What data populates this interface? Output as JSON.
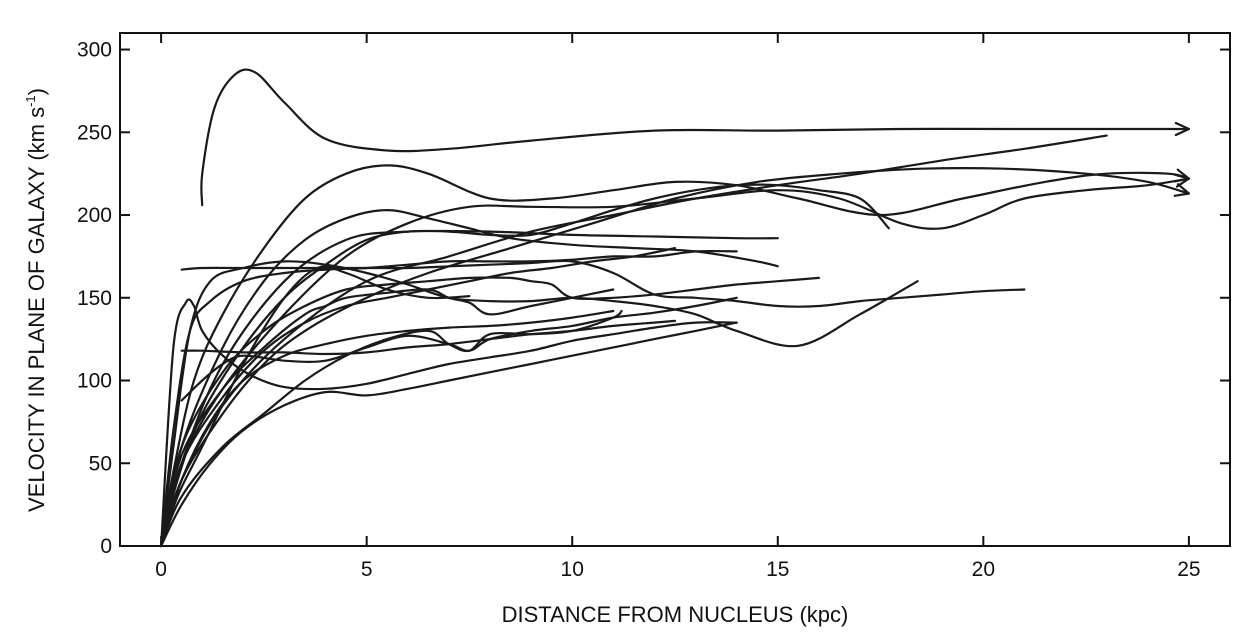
{
  "chart_data": {
    "type": "line",
    "title": "",
    "xlabel": "DISTANCE FROM NUCLEUS (kpc)",
    "ylabel_main": "VELOCITY IN PLANE OF GALAXY (km s",
    "ylabel_sup": "-1",
    "ylabel_end": ")",
    "xlim": [
      -1,
      26
    ],
    "ylim": [
      0,
      310
    ],
    "xticks": [
      0,
      5,
      10,
      15,
      20,
      25
    ],
    "yticks": [
      0,
      50,
      100,
      150,
      200,
      250,
      300
    ],
    "grid": false,
    "legend": "none",
    "line_color": "#1a1a1a",
    "series": [
      {
        "arrow": true,
        "x": [
          1.0,
          1.0,
          1.3,
          1.8,
          2.3,
          3.0,
          4.0,
          5.5,
          7.0,
          9.0,
          12.0,
          15.0,
          18.0,
          21.0,
          25.0
        ],
        "y": [
          206,
          225,
          265,
          285,
          286,
          268,
          246,
          239,
          240,
          245,
          251,
          251,
          252,
          252,
          252
        ]
      },
      {
        "arrow": true,
        "x": [
          0.0,
          0.3,
          0.8,
          1.5,
          2.5,
          3.5,
          4.5,
          5.5,
          6.5,
          8.0,
          9.5,
          11.0,
          12.5,
          14.0,
          15.5,
          17.5,
          19.5,
          21.5,
          23.0,
          24.5,
          25.0
        ],
        "y": [
          0,
          45,
          100,
          140,
          180,
          210,
          225,
          230,
          225,
          210,
          210,
          215,
          220,
          218,
          210,
          200,
          210,
          220,
          225,
          225,
          222
        ]
      },
      {
        "arrow": true,
        "x": [
          0.0,
          0.5,
          1.5,
          2.5,
          3.5,
          5.0,
          6.5,
          8.5,
          10.5,
          12.5,
          14.5,
          16.5,
          18.5,
          20.5,
          22.5,
          24.0,
          25.0
        ],
        "y": [
          0,
          40,
          80,
          110,
          130,
          150,
          165,
          180,
          195,
          210,
          220,
          225,
          228,
          228,
          225,
          220,
          213
        ]
      },
      {
        "arrow": true,
        "x": [
          0.0,
          0.5,
          1.5,
          3.0,
          4.5,
          6.0,
          7.5,
          9.0,
          11.0,
          13.0,
          15.0,
          16.5,
          18.0,
          19.0,
          20.0,
          21.0,
          22.5,
          24.0,
          25.0
        ],
        "y": [
          0,
          50,
          95,
          140,
          175,
          195,
          205,
          205,
          205,
          210,
          215,
          210,
          195,
          192,
          200,
          210,
          215,
          218,
          222
        ]
      },
      {
        "arrow": false,
        "x": [
          0.0,
          0.5,
          1.5,
          3.0,
          5.0,
          7.0,
          9.0,
          11.0,
          13.0,
          15.0,
          17.0,
          19.0,
          21.0,
          23.0
        ],
        "y": [
          0,
          40,
          85,
          125,
          160,
          175,
          190,
          200,
          210,
          218,
          225,
          233,
          240,
          248
        ]
      },
      {
        "arrow": false,
        "x": [
          0.0,
          0.4,
          1.0,
          2.0,
          3.0,
          4.0,
          5.0,
          6.0,
          7.0,
          8.0,
          9.0,
          10.0,
          11.0,
          12.0,
          13.0,
          14.0,
          15.0,
          16.0,
          17.0,
          17.7
        ],
        "y": [
          0,
          40,
          80,
          120,
          150,
          170,
          185,
          190,
          190,
          188,
          188,
          195,
          203,
          210,
          215,
          218,
          218,
          215,
          210,
          192
        ]
      },
      {
        "arrow": false,
        "x": [
          0.0,
          0.5,
          1.5,
          3.0,
          4.5,
          6.0,
          8.0,
          10.0,
          12.0,
          14.0,
          15.0
        ],
        "y": [
          0,
          50,
          110,
          160,
          185,
          190,
          190,
          188,
          187,
          186,
          186
        ]
      },
      {
        "arrow": false,
        "x": [
          0.0,
          0.5,
          1.5,
          2.5,
          3.5,
          4.5,
          5.5,
          6.5,
          7.5,
          8.5,
          10.0,
          11.5,
          13.0,
          14.5,
          15.0
        ],
        "y": [
          0,
          60,
          120,
          160,
          185,
          198,
          203,
          198,
          192,
          186,
          182,
          180,
          178,
          172,
          169
        ]
      },
      {
        "arrow": false,
        "x": [
          0.0,
          0.4,
          1.0,
          2.0,
          3.0,
          3.8,
          4.5,
          5.5,
          6.5,
          7.5
        ],
        "y": [
          0,
          30,
          60,
          110,
          150,
          168,
          165,
          155,
          150,
          151
        ]
      },
      {
        "arrow": false,
        "x": [
          0.0,
          0.3,
          0.7,
          1.2,
          2.0,
          3.0,
          4.0,
          5.0,
          6.0,
          7.0,
          8.0,
          9.0,
          10.0,
          11.0,
          12.0,
          13.0,
          14.0,
          15.5,
          17.0,
          18.4
        ],
        "y": [
          0,
          60,
          130,
          160,
          168,
          172,
          170,
          165,
          158,
          150,
          148,
          148,
          150,
          148,
          145,
          140,
          130,
          121,
          140,
          160
        ]
      },
      {
        "arrow": false,
        "x": [
          0.5,
          1.0,
          2.0,
          3.0,
          4.0,
          5.0,
          6.0,
          7.0,
          8.0,
          9.0,
          10.0,
          11.0,
          12.0,
          13.0,
          14.0,
          15.0,
          16.0,
          17.0,
          18.0,
          19.0,
          20.0,
          21.0
        ],
        "y": [
          167,
          168,
          168,
          168,
          168,
          168,
          168,
          169,
          170,
          171,
          172,
          165,
          152,
          150,
          148,
          145,
          145,
          148,
          150,
          152,
          154,
          155
        ]
      },
      {
        "arrow": false,
        "x": [
          0.0,
          0.3,
          0.7,
          1.2,
          2.0,
          3.0,
          4.0,
          5.0,
          6.0,
          7.0,
          8.0,
          9.0,
          10.0,
          11.0,
          12.0,
          13.0,
          14.0
        ],
        "y": [
          0,
          70,
          130,
          148,
          160,
          165,
          167,
          168,
          170,
          172,
          172,
          172,
          173,
          175,
          175,
          178,
          178
        ]
      },
      {
        "arrow": false,
        "x": [
          0.0,
          0.3,
          0.6,
          0.8,
          1.0,
          1.5,
          2.2,
          3.0,
          4.0,
          5.0,
          6.0,
          7.0,
          8.0,
          9.0,
          10.0,
          11.0,
          12.0,
          13.0,
          14.0
        ],
        "y": [
          0,
          120,
          147,
          145,
          130,
          115,
          103,
          96,
          95,
          98,
          104,
          110,
          114,
          118,
          124,
          128,
          132,
          135,
          135
        ]
      },
      {
        "arrow": false,
        "x": [
          0.0,
          0.5,
          1.5,
          2.5,
          3.5,
          4.5,
          5.5,
          6.5,
          7.5,
          8.5,
          9.5,
          10.5,
          11.5,
          12.5
        ],
        "y": [
          0,
          50,
          90,
          118,
          135,
          145,
          150,
          155,
          160,
          165,
          168,
          172,
          175,
          180
        ]
      },
      {
        "arrow": false,
        "x": [
          0.0,
          0.5,
          1.2,
          2.0,
          3.0,
          4.0,
          5.0,
          6.0,
          7.0,
          8.0,
          9.0,
          10.0,
          11.0
        ],
        "y": [
          0,
          40,
          75,
          100,
          115,
          122,
          127,
          130,
          132,
          133,
          135,
          138,
          142
        ]
      },
      {
        "arrow": false,
        "x": [
          0.0,
          0.5,
          1.5,
          2.5,
          3.5,
          4.5,
          5.5,
          6.5,
          7.0,
          7.5,
          8.0,
          9.0,
          10.0,
          11.0,
          11.2
        ],
        "y": [
          0,
          30,
          60,
          80,
          100,
          115,
          125,
          130,
          122,
          118,
          128,
          128,
          130,
          138,
          142
        ]
      },
      {
        "arrow": false,
        "x": [
          0.0,
          0.5,
          1.2,
          2.0,
          3.0,
          4.0,
          5.0,
          6.0,
          7.0,
          8.0,
          9.0,
          10.0,
          11.0,
          12.0,
          13.0,
          14.0
        ],
        "y": [
          0,
          25,
          50,
          70,
          85,
          93,
          91,
          95,
          100,
          105,
          110,
          115,
          120,
          125,
          130,
          135
        ]
      },
      {
        "arrow": false,
        "x": [
          0.5,
          1.0,
          1.5,
          2.0,
          3.0,
          4.0,
          5.0,
          6.0,
          7.0,
          7.5,
          8.0,
          9.0,
          10.0,
          11.0,
          12.0,
          13.0,
          14.0
        ],
        "y": [
          88,
          100,
          110,
          115,
          112,
          112,
          120,
          127,
          122,
          118,
          125,
          130,
          133,
          138,
          141,
          145,
          150
        ]
      },
      {
        "arrow": false,
        "x": [
          0.0,
          0.5,
          1.5,
          2.5,
          3.5,
          4.0,
          4.5,
          5.5,
          6.5,
          7.0,
          7.5,
          8.0,
          9.0,
          10.0,
          11.0
        ],
        "y": [
          0,
          55,
          95,
          120,
          140,
          145,
          150,
          153,
          155,
          150,
          147,
          140,
          145,
          150,
          155
        ]
      },
      {
        "arrow": false,
        "x": [
          0.5,
          1.0,
          2.0,
          3.0,
          4.0,
          5.0,
          6.0,
          7.0,
          8.0,
          9.0,
          10.0,
          11.0,
          12.0,
          12.5
        ],
        "y": [
          118,
          118,
          117,
          117,
          116,
          117,
          120,
          122,
          125,
          128,
          130,
          133,
          135,
          136
        ]
      },
      {
        "arrow": false,
        "x": [
          0.0,
          0.5,
          1.5,
          2.5,
          3.5,
          4.5,
          5.5,
          6.5,
          7.5,
          8.5,
          9.0,
          9.5,
          10.0,
          11.0,
          12.0,
          13.0,
          14.0,
          15.0,
          16.0
        ],
        "y": [
          0,
          60,
          105,
          130,
          145,
          155,
          158,
          160,
          162,
          162,
          160,
          158,
          150,
          150,
          152,
          155,
          158,
          160,
          162
        ]
      }
    ]
  }
}
